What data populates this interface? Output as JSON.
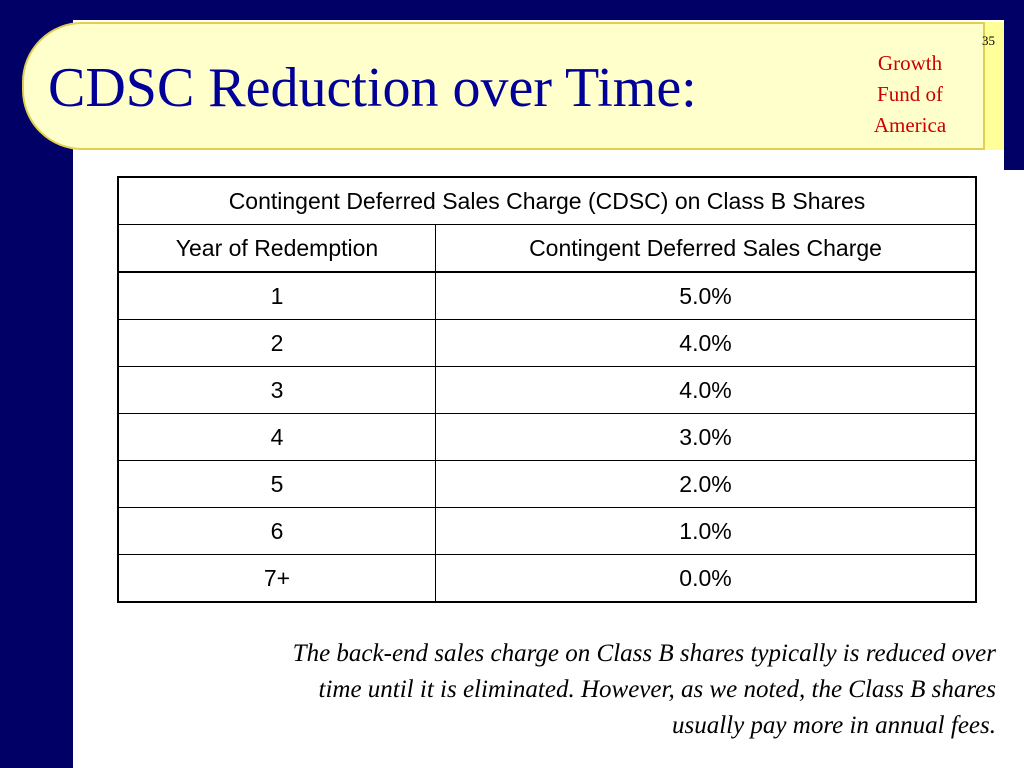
{
  "slide": {
    "title": "CDSC Reduction over Time:",
    "fund_name_lines": [
      "Growth",
      "Fund of",
      "America"
    ],
    "slide_number": "35",
    "colors": {
      "background_band": "#000066",
      "title_panel": "#ffffcc",
      "title_text": "#000099",
      "fund_name": "#cc0000"
    }
  },
  "table": {
    "caption": "Contingent Deferred Sales Charge (CDSC) on Class B Shares",
    "columns": [
      "Year of Redemption",
      "Contingent Deferred Sales Charge"
    ],
    "rows": [
      {
        "year": "1",
        "charge": "5.0%"
      },
      {
        "year": "2",
        "charge": "4.0%"
      },
      {
        "year": "3",
        "charge": "4.0%"
      },
      {
        "year": "4",
        "charge": "3.0%"
      },
      {
        "year": "5",
        "charge": "2.0%"
      },
      {
        "year": "6",
        "charge": "1.0%"
      },
      {
        "year": "7+",
        "charge": "0.0%"
      }
    ]
  },
  "footnote": {
    "lines": [
      "The back-end sales charge on Class B shares typically is reduced over",
      "time until it is eliminated.  However, as we noted, the Class B shares",
      "usually pay more in annual fees."
    ]
  }
}
